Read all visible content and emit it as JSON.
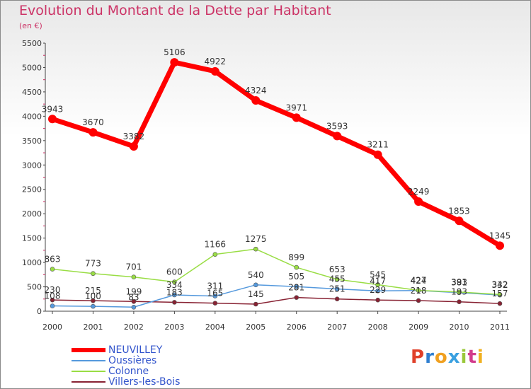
{
  "title": "Evolution du Montant de la Dette par Habitant",
  "subtitle": "(en €)",
  "brand": {
    "text": "Proxiti",
    "colors": [
      "#e0402a",
      "#2f7fd0",
      "#f0a020",
      "#3aa0e0",
      "#9ac83a",
      "#d23c8c",
      "#f0b020"
    ]
  },
  "chart_data": {
    "type": "line",
    "title": "Evolution du Montant de la Dette par Habitant",
    "subtitle": "(en €)",
    "xlabel": "",
    "ylabel": "",
    "x": [
      "2000",
      "2001",
      "2002",
      "2003",
      "2004",
      "2005",
      "2006",
      "2007",
      "2008",
      "2009",
      "2010",
      "2011"
    ],
    "ylim": [
      0,
      5500
    ],
    "yticks": [
      0,
      500,
      1000,
      1500,
      2000,
      2500,
      3000,
      3500,
      4000,
      4500,
      5000,
      5500
    ],
    "grid": false,
    "legend_position": "bottom-left",
    "series": [
      {
        "name": "NEUVILLEY",
        "color": "#ff0000",
        "values": [
          3943,
          3670,
          3382,
          5106,
          4922,
          4324,
          3971,
          3593,
          3211,
          2249,
          1853,
          1345
        ]
      },
      {
        "name": "Oussières",
        "color": "#5599dd",
        "values": [
          108,
          100,
          83,
          334,
          311,
          540,
          505,
          455,
          417,
          424,
          381,
          332
        ]
      },
      {
        "name": "Colonne",
        "color": "#99dd44",
        "values": [
          863,
          773,
          701,
          600,
          1166,
          1275,
          899,
          653,
          545,
          427,
          393,
          342
        ]
      },
      {
        "name": "Villers-les-Bois",
        "color": "#882233",
        "values": [
          230,
          215,
          199,
          183,
          165,
          145,
          281,
          251,
          229,
          218,
          193,
          157
        ]
      }
    ]
  }
}
